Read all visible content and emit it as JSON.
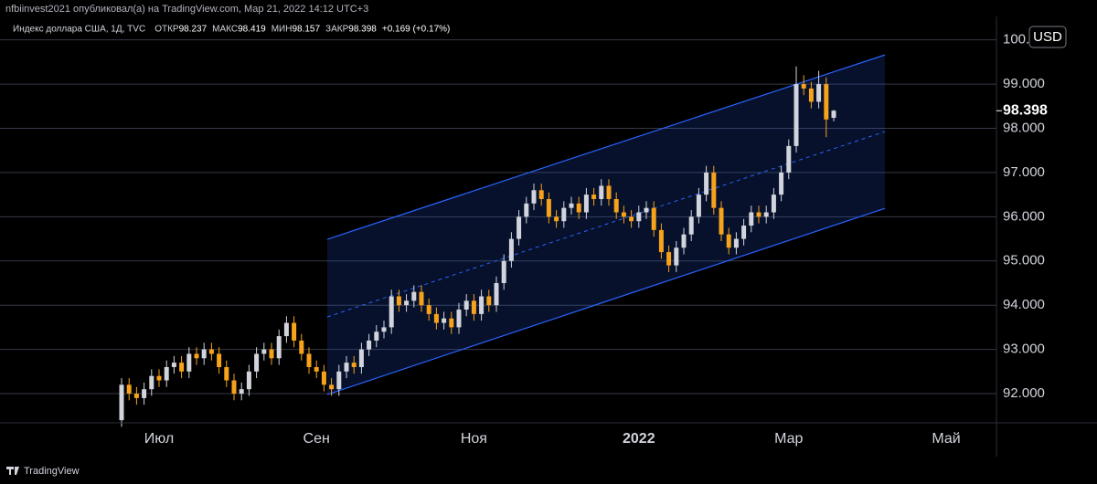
{
  "header": {
    "publisher": "nfbiinvest2021 опубликовал(а) на TradingView.com, Мар 21, 2022 14:12 UTC+3"
  },
  "footer": {
    "brand": "TradingView"
  },
  "chart_data": {
    "type": "candlestick",
    "title": "Индекс доллара США, 1Д, TVC",
    "summary": [
      {
        "label": "ОТКР",
        "value": 98.237
      },
      {
        "label": "МАКС",
        "value": 98.419
      },
      {
        "label": "МИН",
        "value": 98.157
      },
      {
        "label": "ЗАКР",
        "value": 98.398
      }
    ],
    "change": "+0.169 (+0.17%)",
    "currency": "USD",
    "last_price": 98.398,
    "up_color": "#d1d4dc",
    "down_color": "#f7a21b",
    "categories": [
      null,
      null,
      null,
      null,
      null,
      "Июл",
      null,
      null,
      null,
      null,
      null,
      null,
      null,
      null,
      null,
      null,
      null,
      null,
      null,
      null,
      null,
      null,
      null,
      null,
      null,
      null,
      "Сен",
      null,
      null,
      null,
      null,
      null,
      null,
      null,
      null,
      null,
      null,
      null,
      null,
      null,
      null,
      null,
      null,
      null,
      null,
      null,
      null,
      "Ноя",
      null,
      null,
      null,
      null,
      null,
      null,
      null,
      null,
      null,
      null,
      null,
      null,
      null,
      null,
      null,
      null,
      null,
      null,
      null,
      null,
      null,
      "2022",
      null,
      null,
      null,
      null,
      null,
      null,
      null,
      null,
      null,
      null,
      null,
      null,
      null,
      null,
      null,
      null,
      null,
      null,
      null,
      "Мар",
      null,
      null,
      null,
      null,
      null,
      null,
      null,
      null,
      null,
      null,
      null,
      null,
      null,
      null,
      null,
      null,
      null,
      null,
      null,
      null,
      "Май"
    ],
    "open": [
      91.4,
      92.2,
      92.0,
      91.9,
      92.1,
      92.4,
      92.3,
      92.6,
      92.7,
      92.5,
      92.9,
      92.8,
      93.0,
      92.9,
      92.6,
      92.3,
      92.0,
      92.1,
      92.5,
      92.9,
      93.0,
      92.8,
      93.3,
      93.6,
      93.2,
      92.9,
      92.6,
      92.5,
      92.2,
      92.1,
      92.5,
      92.7,
      92.6,
      93.0,
      93.2,
      93.4,
      93.5,
      94.2,
      94.0,
      94.1,
      94.3,
      94.0,
      93.8,
      93.6,
      93.7,
      93.5,
      93.9,
      94.1,
      93.8,
      94.2,
      94.0,
      94.5,
      95.0,
      95.5,
      96.0,
      96.3,
      96.6,
      96.4,
      96.0,
      95.9,
      96.2,
      96.3,
      96.1,
      96.5,
      96.4,
      96.7,
      96.4,
      96.1,
      96.0,
      95.9,
      96.1,
      96.2,
      95.7,
      95.2,
      94.9,
      95.3,
      95.6,
      96.0,
      96.5,
      97.0,
      96.2,
      95.6,
      95.3,
      95.5,
      95.8,
      96.1,
      96.0,
      96.1,
      96.5,
      97.0,
      97.6,
      99.0,
      98.9,
      98.6,
      99.0,
      98.237,
      null,
      null,
      null,
      null,
      null,
      null,
      null,
      null,
      null,
      null,
      null,
      null,
      null,
      null,
      null
    ],
    "high": [
      92.35,
      92.35,
      92.15,
      92.25,
      92.55,
      92.55,
      92.75,
      92.85,
      92.85,
      93.05,
      93.05,
      93.15,
      93.15,
      93.05,
      92.75,
      92.45,
      92.25,
      92.65,
      93.05,
      93.15,
      93.15,
      93.45,
      93.75,
      93.75,
      93.35,
      93.05,
      92.75,
      92.65,
      92.35,
      92.65,
      92.85,
      92.85,
      93.15,
      93.35,
      93.55,
      93.65,
      94.35,
      94.35,
      94.25,
      94.45,
      94.45,
      94.15,
      93.95,
      93.85,
      93.85,
      94.05,
      94.25,
      94.25,
      94.35,
      94.35,
      94.65,
      95.15,
      95.65,
      96.15,
      96.45,
      96.75,
      96.75,
      96.55,
      96.15,
      96.35,
      96.45,
      96.45,
      96.65,
      96.65,
      96.85,
      96.85,
      96.55,
      96.25,
      96.15,
      96.25,
      96.35,
      96.35,
      95.85,
      95.35,
      95.45,
      95.75,
      96.15,
      96.65,
      97.15,
      97.15,
      96.35,
      95.75,
      95.65,
      95.95,
      96.25,
      96.25,
      96.25,
      96.65,
      97.15,
      97.75,
      99.4,
      99.2,
      99.05,
      99.3,
      99.15,
      98.419,
      null,
      null,
      null,
      null,
      null,
      null,
      null,
      null,
      null,
      null,
      null,
      null,
      null,
      null,
      null
    ],
    "low": [
      91.25,
      91.85,
      91.75,
      91.75,
      91.95,
      92.15,
      92.15,
      92.45,
      92.35,
      92.35,
      92.65,
      92.65,
      92.75,
      92.45,
      92.15,
      91.85,
      91.85,
      91.95,
      92.35,
      92.75,
      92.65,
      92.65,
      93.15,
      93.05,
      92.75,
      92.45,
      92.35,
      92.05,
      91.95,
      91.95,
      92.35,
      92.45,
      92.45,
      92.85,
      93.05,
      93.25,
      93.35,
      93.85,
      93.85,
      93.95,
      93.85,
      93.65,
      93.45,
      93.45,
      93.35,
      93.35,
      93.75,
      93.65,
      93.65,
      93.85,
      93.85,
      94.35,
      94.85,
      95.35,
      95.85,
      96.15,
      96.25,
      95.85,
      95.75,
      95.75,
      96.05,
      95.95,
      95.95,
      96.25,
      96.25,
      96.25,
      95.95,
      95.85,
      95.75,
      95.75,
      95.95,
      95.55,
      95.05,
      94.75,
      94.75,
      95.15,
      95.45,
      95.85,
      96.35,
      96.05,
      95.45,
      95.15,
      95.15,
      95.35,
      95.65,
      95.85,
      95.85,
      95.95,
      96.35,
      96.85,
      97.45,
      98.75,
      98.45,
      98.45,
      97.8,
      98.157,
      null,
      null,
      null,
      null,
      null,
      null,
      null,
      null,
      null,
      null,
      null,
      null,
      null,
      null,
      null
    ],
    "close": [
      92.2,
      92.0,
      91.9,
      92.1,
      92.4,
      92.3,
      92.6,
      92.7,
      92.5,
      92.9,
      92.8,
      93.0,
      92.9,
      92.6,
      92.3,
      92.0,
      92.1,
      92.5,
      92.9,
      93.0,
      92.8,
      93.3,
      93.6,
      93.2,
      92.9,
      92.6,
      92.5,
      92.2,
      92.1,
      92.5,
      92.7,
      92.6,
      93.0,
      93.2,
      93.4,
      93.5,
      94.2,
      94.0,
      94.1,
      94.3,
      94.0,
      93.8,
      93.6,
      93.7,
      93.5,
      93.9,
      94.1,
      93.8,
      94.2,
      94.0,
      94.5,
      95.0,
      95.5,
      96.0,
      96.3,
      96.6,
      96.4,
      96.0,
      95.9,
      96.2,
      96.3,
      96.1,
      96.5,
      96.4,
      96.7,
      96.4,
      96.1,
      96.0,
      95.9,
      96.1,
      96.2,
      95.7,
      95.2,
      94.9,
      95.3,
      95.6,
      96.0,
      96.5,
      97.0,
      96.2,
      95.6,
      95.3,
      95.5,
      95.8,
      96.1,
      96.0,
      96.1,
      96.5,
      97.0,
      97.6,
      99.0,
      98.9,
      98.6,
      99.0,
      98.2,
      98.398,
      null,
      null,
      null,
      null,
      null,
      null,
      null,
      null,
      null,
      null,
      null,
      null,
      null,
      null,
      null
    ],
    "channel": {
      "upper": [
        95.49,
        99.66
      ],
      "lower": [
        91.98,
        96.19
      ],
      "color": "#2962ff"
    },
    "ylim": [
      91.34,
      100.53
    ],
    "yticks": [
      {
        "value": 92,
        "label": "92.000"
      },
      {
        "value": 93,
        "label": "93.000"
      },
      {
        "value": 94,
        "label": "94.000"
      },
      {
        "value": 95,
        "label": "95.000"
      },
      {
        "value": 96,
        "label": "96.000"
      },
      {
        "value": 97,
        "label": "97.000"
      },
      {
        "value": 98,
        "label": "98.000"
      },
      {
        "value": 99,
        "label": "99.000"
      },
      {
        "value": 100,
        "label": "100.000"
      }
    ],
    "grid": true
  }
}
